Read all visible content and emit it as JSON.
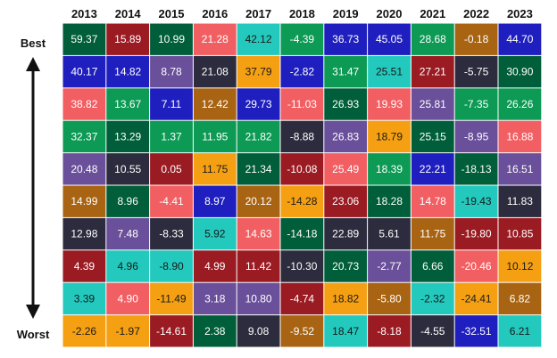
{
  "chart_data": {
    "type": "heatmap",
    "years": [
      "2013",
      "2014",
      "2015",
      "2016",
      "2017",
      "2018",
      "2019",
      "2020",
      "2021",
      "2022",
      "2023"
    ],
    "rank_labels": {
      "top": "Best",
      "bottom": "Worst"
    },
    "palette": {
      "green": "#0d9a55",
      "red": "#9b1b23",
      "purple": "#6a4f9a",
      "pink": "#f25f63",
      "cyan": "#23c9bd",
      "blue": "#1f1fbf",
      "dark": "#2c2c3e",
      "orange": "#f5a013",
      "darkgreen": "#005e3a",
      "brown": "#a86412"
    },
    "columns": [
      {
        "year": "2013",
        "cells": [
          {
            "value": "59.37",
            "color": "darkgreen"
          },
          {
            "value": "40.17",
            "color": "blue"
          },
          {
            "value": "38.82",
            "color": "pink"
          },
          {
            "value": "32.37",
            "color": "green"
          },
          {
            "value": "20.48",
            "color": "purple"
          },
          {
            "value": "14.99",
            "color": "brown"
          },
          {
            "value": "12.98",
            "color": "dark"
          },
          {
            "value": "4.39",
            "color": "red"
          },
          {
            "value": "3.39",
            "color": "cyan"
          },
          {
            "value": "-2.26",
            "color": "orange"
          }
        ]
      },
      {
        "year": "2014",
        "cells": [
          {
            "value": "15.89",
            "color": "red"
          },
          {
            "value": "14.82",
            "color": "blue"
          },
          {
            "value": "13.67",
            "color": "green"
          },
          {
            "value": "13.29",
            "color": "darkgreen"
          },
          {
            "value": "10.55",
            "color": "dark"
          },
          {
            "value": "8.96",
            "color": "darkgreen"
          },
          {
            "value": "7.48",
            "color": "purple"
          },
          {
            "value": "4.96",
            "color": "cyan"
          },
          {
            "value": "4.90",
            "color": "pink"
          },
          {
            "value": "-1.97",
            "color": "orange"
          }
        ]
      },
      {
        "year": "2015",
        "cells": [
          {
            "value": "10.99",
            "color": "darkgreen"
          },
          {
            "value": "8.78",
            "color": "purple"
          },
          {
            "value": "7.11",
            "color": "blue"
          },
          {
            "value": "1.37",
            "color": "green"
          },
          {
            "value": "0.05",
            "color": "red"
          },
          {
            "value": "-4.41",
            "color": "pink"
          },
          {
            "value": "-8.33",
            "color": "dark"
          },
          {
            "value": "-8.90",
            "color": "cyan"
          },
          {
            "value": "-11.49",
            "color": "orange"
          },
          {
            "value": "-14.61",
            "color": "red"
          }
        ]
      },
      {
        "year": "2016",
        "cells": [
          {
            "value": "21.28",
            "color": "pink"
          },
          {
            "value": "21.08",
            "color": "dark"
          },
          {
            "value": "12.42",
            "color": "brown"
          },
          {
            "value": "11.95",
            "color": "green"
          },
          {
            "value": "11.75",
            "color": "orange"
          },
          {
            "value": "8.97",
            "color": "blue"
          },
          {
            "value": "5.92",
            "color": "cyan"
          },
          {
            "value": "4.99",
            "color": "red"
          },
          {
            "value": "3.18",
            "color": "purple"
          },
          {
            "value": "2.38",
            "color": "darkgreen"
          }
        ]
      },
      {
        "year": "2017",
        "cells": [
          {
            "value": "42.12",
            "color": "cyan"
          },
          {
            "value": "37.79",
            "color": "orange"
          },
          {
            "value": "29.73",
            "color": "blue"
          },
          {
            "value": "21.82",
            "color": "green"
          },
          {
            "value": "21.34",
            "color": "darkgreen"
          },
          {
            "value": "20.12",
            "color": "brown"
          },
          {
            "value": "14.63",
            "color": "pink"
          },
          {
            "value": "11.42",
            "color": "red"
          },
          {
            "value": "10.80",
            "color": "purple"
          },
          {
            "value": "9.08",
            "color": "dark"
          }
        ]
      },
      {
        "year": "2018",
        "cells": [
          {
            "value": "-4.39",
            "color": "green"
          },
          {
            "value": "-2.82",
            "color": "blue"
          },
          {
            "value": "-11.03",
            "color": "pink"
          },
          {
            "value": "-8.88",
            "color": "dark"
          },
          {
            "value": "-10.08",
            "color": "red"
          },
          {
            "value": "-14.28",
            "color": "orange"
          },
          {
            "value": "-14.18",
            "color": "darkgreen"
          },
          {
            "value": "-10.30",
            "color": "dark"
          },
          {
            "value": "-4.74",
            "color": "red"
          },
          {
            "value": "-9.52",
            "color": "brown"
          }
        ]
      },
      {
        "year": "2019",
        "cells": [
          {
            "value": "36.73",
            "color": "blue"
          },
          {
            "value": "31.47",
            "color": "green"
          },
          {
            "value": "26.93",
            "color": "darkgreen"
          },
          {
            "value": "26.83",
            "color": "purple"
          },
          {
            "value": "25.49",
            "color": "pink"
          },
          {
            "value": "23.06",
            "color": "red"
          },
          {
            "value": "22.89",
            "color": "dark"
          },
          {
            "value": "20.73",
            "color": "darkgreen"
          },
          {
            "value": "18.82",
            "color": "orange"
          },
          {
            "value": "18.47",
            "color": "cyan"
          }
        ]
      },
      {
        "year": "2020",
        "cells": [
          {
            "value": "45.05",
            "color": "blue"
          },
          {
            "value": "25.51",
            "color": "cyan"
          },
          {
            "value": "19.93",
            "color": "pink"
          },
          {
            "value": "18.79",
            "color": "orange"
          },
          {
            "value": "18.39",
            "color": "green"
          },
          {
            "value": "18.28",
            "color": "darkgreen"
          },
          {
            "value": "5.61",
            "color": "dark"
          },
          {
            "value": "-2.77",
            "color": "purple"
          },
          {
            "value": "-5.80",
            "color": "brown"
          },
          {
            "value": "-8.18",
            "color": "red"
          }
        ]
      },
      {
        "year": "2021",
        "cells": [
          {
            "value": "28.68",
            "color": "green"
          },
          {
            "value": "27.21",
            "color": "red"
          },
          {
            "value": "25.81",
            "color": "purple"
          },
          {
            "value": "25.15",
            "color": "darkgreen"
          },
          {
            "value": "22.21",
            "color": "blue"
          },
          {
            "value": "14.78",
            "color": "pink"
          },
          {
            "value": "11.75",
            "color": "brown"
          },
          {
            "value": "6.66",
            "color": "darkgreen"
          },
          {
            "value": "-2.32",
            "color": "cyan"
          },
          {
            "value": "-4.55",
            "color": "dark"
          }
        ]
      },
      {
        "year": "2022",
        "cells": [
          {
            "value": "-0.18",
            "color": "brown"
          },
          {
            "value": "-5.75",
            "color": "dark"
          },
          {
            "value": "-7.35",
            "color": "green"
          },
          {
            "value": "-8.95",
            "color": "purple"
          },
          {
            "value": "-18.13",
            "color": "darkgreen"
          },
          {
            "value": "-19.43",
            "color": "cyan"
          },
          {
            "value": "-19.80",
            "color": "red"
          },
          {
            "value": "-20.46",
            "color": "pink"
          },
          {
            "value": "-24.41",
            "color": "orange"
          },
          {
            "value": "-32.51",
            "color": "blue"
          }
        ]
      },
      {
        "year": "2023",
        "cells": [
          {
            "value": "44.70",
            "color": "blue"
          },
          {
            "value": "30.90",
            "color": "darkgreen"
          },
          {
            "value": "26.26",
            "color": "green"
          },
          {
            "value": "16.88",
            "color": "pink"
          },
          {
            "value": "16.51",
            "color": "purple"
          },
          {
            "value": "11.83",
            "color": "dark"
          },
          {
            "value": "10.85",
            "color": "red"
          },
          {
            "value": "10.12",
            "color": "orange"
          },
          {
            "value": "6.82",
            "color": "brown"
          },
          {
            "value": "6.21",
            "color": "cyan"
          }
        ]
      }
    ]
  }
}
